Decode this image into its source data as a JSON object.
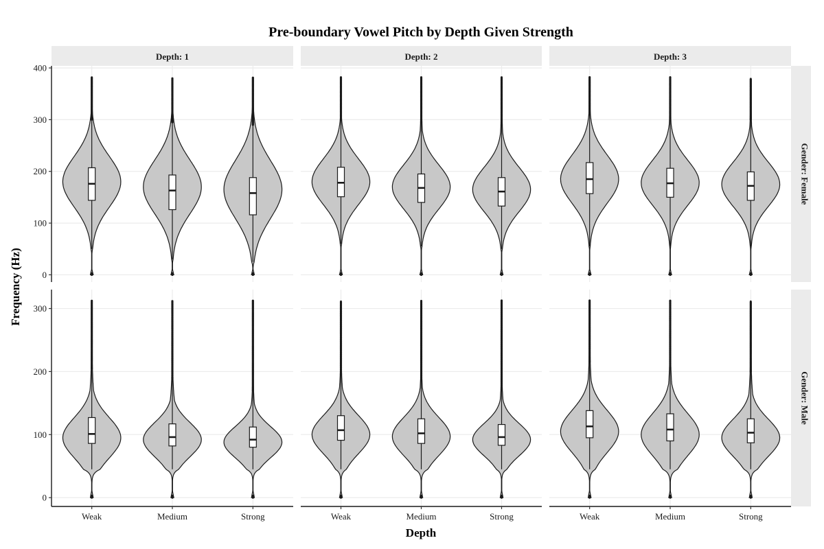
{
  "chart_data": {
    "type": "violin",
    "title": "Pre-boundary Vowel Pitch by Depth Given Strength",
    "xlabel": "Depth",
    "ylabel": "Frequency (Hz)",
    "categories": [
      "Weak",
      "Medium",
      "Strong"
    ],
    "col_facets": [
      "Depth: 1",
      "Depth: 2",
      "Depth: 3"
    ],
    "row_facets": [
      "Gender: Female",
      "Gender: Male"
    ],
    "grid": true,
    "colors": {
      "violin_fill": "#c8c8c8",
      "box_fill": "#ffffff",
      "line": "#1a1a1a",
      "strip": "#ebebeb",
      "grid": "#ebebeb"
    },
    "rows": [
      {
        "name": "Gender: Female",
        "ylim": [
          -14,
          404
        ],
        "yticks": [
          0,
          100,
          200,
          300,
          400
        ],
        "panels": [
          {
            "facet": "Depth: 1",
            "violins": [
              {
                "category": "Weak",
                "min": 0,
                "q1": 144,
                "median": 176,
                "q3": 207,
                "whisker_low": 50,
                "whisker_high": 300,
                "max": 382,
                "mode": 180,
                "halfwidth": 0.36
              },
              {
                "category": "Medium",
                "min": 0,
                "q1": 126,
                "median": 163,
                "q3": 193,
                "whisker_low": 30,
                "whisker_high": 295,
                "max": 380,
                "mode": 170,
                "halfwidth": 0.36
              },
              {
                "category": "Strong",
                "min": 0,
                "q1": 116,
                "median": 158,
                "q3": 188,
                "whisker_low": 25,
                "whisker_high": 290,
                "max": 382,
                "mode": 165,
                "halfwidth": 0.36
              }
            ]
          },
          {
            "facet": "Depth: 2",
            "violins": [
              {
                "category": "Weak",
                "min": 0,
                "q1": 151,
                "median": 178,
                "q3": 208,
                "whisker_low": 60,
                "whisker_high": 300,
                "max": 383,
                "mode": 180,
                "halfwidth": 0.36
              },
              {
                "category": "Medium",
                "min": 0,
                "q1": 140,
                "median": 168,
                "q3": 195,
                "whisker_low": 55,
                "whisker_high": 300,
                "max": 383,
                "mode": 170,
                "halfwidth": 0.36
              },
              {
                "category": "Strong",
                "min": 0,
                "q1": 133,
                "median": 161,
                "q3": 188,
                "whisker_low": 50,
                "whisker_high": 295,
                "max": 383,
                "mode": 165,
                "halfwidth": 0.36
              }
            ]
          },
          {
            "facet": "Depth: 3",
            "violins": [
              {
                "category": "Weak",
                "min": 0,
                "q1": 157,
                "median": 185,
                "q3": 217,
                "whisker_low": 55,
                "whisker_high": 310,
                "max": 383,
                "mode": 185,
                "halfwidth": 0.36
              },
              {
                "category": "Medium",
                "min": 0,
                "q1": 150,
                "median": 177,
                "q3": 206,
                "whisker_low": 55,
                "whisker_high": 305,
                "max": 383,
                "mode": 178,
                "halfwidth": 0.36
              },
              {
                "category": "Strong",
                "min": 0,
                "q1": 144,
                "median": 172,
                "q3": 199,
                "whisker_low": 55,
                "whisker_high": 300,
                "max": 380,
                "mode": 175,
                "halfwidth": 0.36
              }
            ]
          }
        ]
      },
      {
        "name": "Gender: Male",
        "ylim": [
          -14,
          330
        ],
        "yticks": [
          0,
          100,
          200,
          300
        ],
        "panels": [
          {
            "facet": "Depth: 1",
            "violins": [
              {
                "category": "Weak",
                "min": 0,
                "q1": 86,
                "median": 101,
                "q3": 127,
                "whisker_low": 45,
                "whisker_high": 205,
                "max": 313,
                "mode": 95,
                "halfwidth": 0.36
              },
              {
                "category": "Medium",
                "min": 0,
                "q1": 82,
                "median": 96,
                "q3": 117,
                "whisker_low": 45,
                "whisker_high": 190,
                "max": 312,
                "mode": 92,
                "halfwidth": 0.36
              },
              {
                "category": "Strong",
                "min": 0,
                "q1": 80,
                "median": 92,
                "q3": 112,
                "whisker_low": 45,
                "whisker_high": 170,
                "max": 313,
                "mode": 88,
                "halfwidth": 0.36
              }
            ]
          },
          {
            "facet": "Depth: 2",
            "violins": [
              {
                "category": "Weak",
                "min": 0,
                "q1": 91,
                "median": 107,
                "q3": 130,
                "whisker_low": 45,
                "whisker_high": 200,
                "max": 312,
                "mode": 100,
                "halfwidth": 0.36
              },
              {
                "category": "Medium",
                "min": 0,
                "q1": 86,
                "median": 102,
                "q3": 125,
                "whisker_low": 45,
                "whisker_high": 190,
                "max": 313,
                "mode": 97,
                "halfwidth": 0.36
              },
              {
                "category": "Strong",
                "min": 0,
                "q1": 83,
                "median": 96,
                "q3": 116,
                "whisker_low": 45,
                "whisker_high": 175,
                "max": 313,
                "mode": 92,
                "halfwidth": 0.36
              }
            ]
          },
          {
            "facet": "Depth: 3",
            "violins": [
              {
                "category": "Weak",
                "min": 0,
                "q1": 95,
                "median": 113,
                "q3": 138,
                "whisker_low": 45,
                "whisker_high": 215,
                "max": 313,
                "mode": 105,
                "halfwidth": 0.36
              },
              {
                "category": "Medium",
                "min": 0,
                "q1": 90,
                "median": 108,
                "q3": 133,
                "whisker_low": 45,
                "whisker_high": 210,
                "max": 313,
                "mode": 100,
                "halfwidth": 0.36
              },
              {
                "category": "Strong",
                "min": 0,
                "q1": 87,
                "median": 103,
                "q3": 125,
                "whisker_low": 45,
                "whisker_high": 200,
                "max": 312,
                "mode": 95,
                "halfwidth": 0.36
              }
            ]
          }
        ]
      }
    ]
  }
}
